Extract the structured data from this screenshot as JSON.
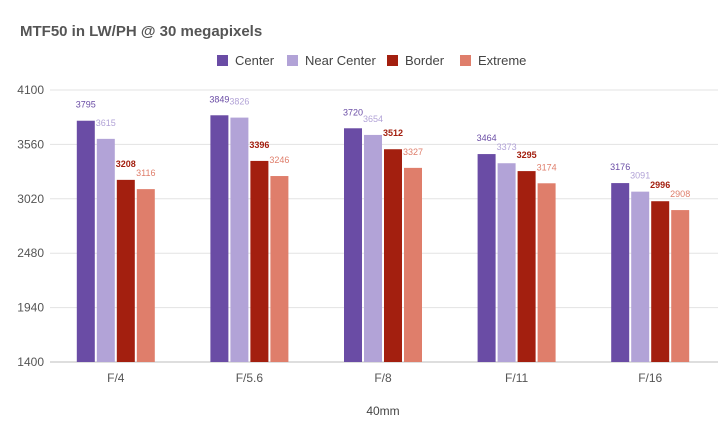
{
  "chart_data": {
    "type": "bar",
    "title": "MTF50 in LW/PH @ 30 megapixels",
    "xlabel": "40mm",
    "ylabel": "",
    "categories": [
      "F/4",
      "F/5.6",
      "F/8",
      "F/11",
      "F/16"
    ],
    "ylim": [
      1400,
      4100
    ],
    "yticks": [
      "1400",
      "1940",
      "2480",
      "3020",
      "3560",
      "4100"
    ],
    "grid": true,
    "legend_position": "top",
    "series": [
      {
        "name": "Center",
        "color": "#6a4ca5",
        "values": [
          3795,
          3849,
          3720,
          3464,
          3176
        ]
      },
      {
        "name": "Near Center",
        "color": "#b2a3d7",
        "values": [
          3615,
          3826,
          3654,
          3373,
          3091
        ]
      },
      {
        "name": "Border",
        "color": "#a31f0f",
        "values": [
          3208,
          3396,
          3512,
          3295,
          2996
        ]
      },
      {
        "name": "Extreme",
        "color": "#df7e6b",
        "values": [
          3116,
          3246,
          3327,
          3174,
          2908
        ]
      }
    ]
  }
}
